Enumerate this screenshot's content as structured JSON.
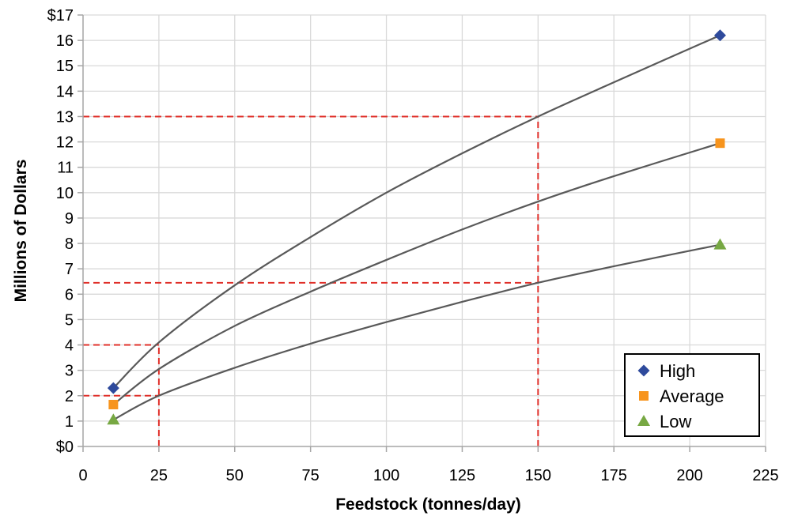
{
  "chart_data": {
    "type": "line",
    "xlabel": "Feedstock (tonnes/day)",
    "ylabel": "Millions of Dollars",
    "xlim": [
      0,
      225
    ],
    "ylim": [
      0,
      17
    ],
    "x_ticks": [
      0,
      25,
      50,
      75,
      100,
      125,
      150,
      175,
      200,
      225
    ],
    "x_tick_labels": [
      "0",
      "25",
      "50",
      "75",
      "100",
      "125",
      "150",
      "175",
      "200",
      "225"
    ],
    "y_ticks": [
      0,
      1,
      2,
      3,
      4,
      5,
      6,
      7,
      8,
      9,
      10,
      11,
      12,
      13,
      14,
      15,
      16,
      17
    ],
    "y_tick_labels": [
      "$0",
      "1",
      "2",
      "3",
      "4",
      "5",
      "6",
      "7",
      "8",
      "9",
      "10",
      "11",
      "12",
      "13",
      "14",
      "15",
      "16",
      "$17"
    ],
    "grid": true,
    "legend_position": "bottom-right",
    "series": [
      {
        "name": "High",
        "color": "#2E4A9C",
        "marker": "diamond",
        "points": [
          [
            10,
            2.3
          ],
          [
            210,
            16.2
          ]
        ],
        "curve": [
          [
            10,
            2.3
          ],
          [
            25,
            4.1
          ],
          [
            50,
            6.35
          ],
          [
            75,
            8.25
          ],
          [
            100,
            10.0
          ],
          [
            125,
            11.55
          ],
          [
            150,
            13.0
          ],
          [
            175,
            14.35
          ],
          [
            210,
            16.2
          ]
        ]
      },
      {
        "name": "Average",
        "color": "#F7941D",
        "marker": "square",
        "points": [
          [
            10,
            1.65
          ],
          [
            210,
            11.95
          ]
        ],
        "curve": [
          [
            10,
            1.65
          ],
          [
            25,
            3.05
          ],
          [
            50,
            4.75
          ],
          [
            75,
            6.1
          ],
          [
            100,
            7.35
          ],
          [
            125,
            8.55
          ],
          [
            150,
            9.65
          ],
          [
            175,
            10.65
          ],
          [
            210,
            11.95
          ]
        ]
      },
      {
        "name": "Low",
        "color": "#77A843",
        "marker": "triangle",
        "points": [
          [
            10,
            1.05
          ],
          [
            210,
            7.95
          ]
        ],
        "curve": [
          [
            10,
            1.05
          ],
          [
            25,
            2.0
          ],
          [
            50,
            3.1
          ],
          [
            75,
            4.05
          ],
          [
            100,
            4.9
          ],
          [
            125,
            5.7
          ],
          [
            150,
            6.45
          ],
          [
            175,
            7.1
          ],
          [
            210,
            7.95
          ]
        ]
      }
    ],
    "reference_lines": {
      "color": "#E0302A",
      "segments": [
        [
          [
            0,
            2
          ],
          [
            25,
            2
          ]
        ],
        [
          [
            0,
            4
          ],
          [
            25,
            4
          ]
        ],
        [
          [
            25,
            0
          ],
          [
            25,
            4
          ]
        ],
        [
          [
            0,
            6.45
          ],
          [
            150,
            6.45
          ]
        ],
        [
          [
            0,
            13
          ],
          [
            150,
            13
          ]
        ],
        [
          [
            150,
            0
          ],
          [
            150,
            13
          ]
        ]
      ]
    }
  },
  "colors": {
    "grid": "#D9D9D9",
    "axis": "#A6A6A6",
    "curve": "#595959",
    "legend_border": "#000000"
  }
}
